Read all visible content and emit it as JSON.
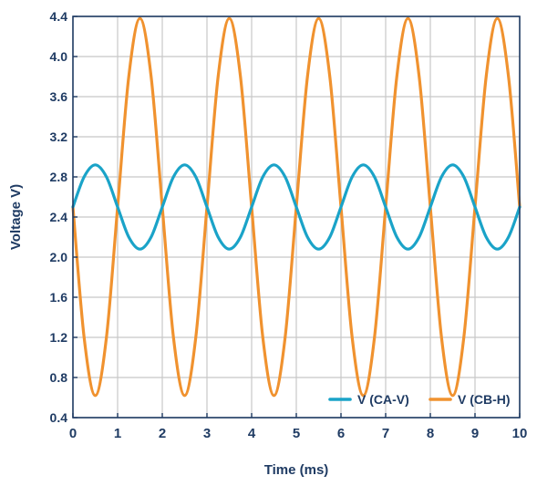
{
  "colors": {
    "series_ca_v": "#1aa3c8",
    "series_cb_h": "#f0922f",
    "axis_text": "#1f3b63",
    "grid": "#c7c7c7",
    "frame": "#1f3b63"
  },
  "chart_data": {
    "type": "line",
    "xlabel": "Time (ms)",
    "ylabel": "Voltage V)",
    "xlim": [
      0,
      10
    ],
    "ylim": [
      0.4,
      4.4
    ],
    "grid": true,
    "legend_position": "bottom-right",
    "x_ticks": [
      "0",
      "1",
      "2",
      "3",
      "4",
      "5",
      "6",
      "7",
      "8",
      "9",
      "10"
    ],
    "y_ticks": [
      "0.4",
      "0.8",
      "1.2",
      "1.6",
      "2.0",
      "2.4",
      "2.8",
      "3.2",
      "3.6",
      "4.0",
      "4.4"
    ],
    "series": [
      {
        "name": "V (CA-V)",
        "color": "#1aa3c8",
        "x": [
          0,
          0.25,
          0.5,
          0.75,
          1,
          1.25,
          1.5,
          1.75,
          2,
          2.25,
          2.5,
          2.75,
          3,
          3.25,
          3.5,
          3.75,
          4,
          4.25,
          4.5,
          4.75,
          5,
          5.25,
          5.5,
          5.75,
          6,
          6.25,
          6.5,
          6.75,
          7,
          7.25,
          7.5,
          7.75,
          8,
          8.25,
          8.5,
          8.75,
          9,
          9.25,
          9.5,
          9.75,
          10
        ],
        "y": [
          2.5,
          2.8,
          2.92,
          2.8,
          2.5,
          2.2,
          2.08,
          2.2,
          2.5,
          2.8,
          2.92,
          2.8,
          2.5,
          2.2,
          2.08,
          2.2,
          2.5,
          2.8,
          2.92,
          2.8,
          2.5,
          2.2,
          2.08,
          2.2,
          2.5,
          2.8,
          2.92,
          2.8,
          2.5,
          2.2,
          2.08,
          2.2,
          2.5,
          2.8,
          2.92,
          2.8,
          2.5,
          2.2,
          2.08,
          2.2,
          2.5
        ]
      },
      {
        "name": "V (CB-H)",
        "color": "#f0922f",
        "x": [
          0,
          0.25,
          0.5,
          0.75,
          1,
          1.25,
          1.5,
          1.75,
          2,
          2.25,
          2.5,
          2.75,
          3,
          3.25,
          3.5,
          3.75,
          4,
          4.25,
          4.5,
          4.75,
          5,
          5.25,
          5.5,
          5.75,
          6,
          6.25,
          6.5,
          6.75,
          7,
          7.25,
          7.5,
          7.75,
          8,
          8.25,
          8.5,
          8.75,
          9,
          9.25,
          9.5,
          9.75,
          10
        ],
        "y": [
          2.5,
          1.2,
          0.62,
          1.2,
          2.5,
          3.8,
          4.38,
          3.8,
          2.5,
          1.2,
          0.62,
          1.2,
          2.5,
          3.8,
          4.38,
          3.8,
          2.5,
          1.2,
          0.62,
          1.2,
          2.5,
          3.8,
          4.38,
          3.8,
          2.5,
          1.2,
          0.62,
          1.2,
          2.5,
          3.8,
          4.38,
          3.8,
          2.5,
          1.2,
          0.62,
          1.2,
          2.5,
          3.8,
          4.38,
          3.8,
          2.5
        ]
      }
    ]
  }
}
